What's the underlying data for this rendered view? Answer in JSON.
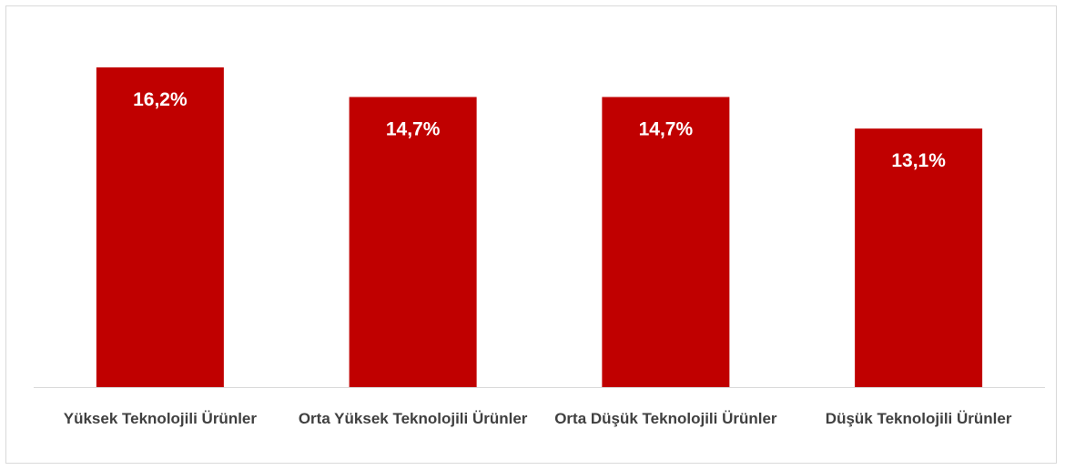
{
  "chart_data": {
    "type": "bar",
    "categories": [
      "Yüksek Teknolojili Ürünler",
      "Orta Yüksek Teknolojili Ürünler",
      "Orta Düşük Teknolojili Ürünler",
      "Düşük Teknolojili Ürünler"
    ],
    "values": [
      16.2,
      14.7,
      14.7,
      13.1
    ],
    "value_labels": [
      "16,2%",
      "14,7%",
      "14,7%",
      "13,1%"
    ],
    "color": "#c00000"
  }
}
